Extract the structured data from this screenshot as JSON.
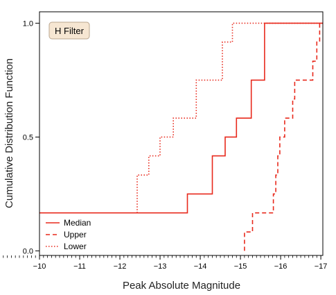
{
  "chart_data": {
    "type": "line",
    "step": true,
    "annotation": "H Filter",
    "xlabel": "Peak Absolute Magnitude",
    "ylabel": "Cumulative Distribution Function",
    "xlim": [
      -10,
      -17.05
    ],
    "ylim": [
      -0.02,
      1.05
    ],
    "x_inverted": true,
    "x_ticks": [
      -10,
      -11,
      -12,
      -13,
      -14,
      -15,
      -16,
      -17
    ],
    "x_tick_labels": [
      "−10",
      "−11",
      "−12",
      "−13",
      "−14",
      "−15",
      "−16",
      "−17"
    ],
    "y_ticks": [
      0.0,
      0.5,
      1.0
    ],
    "y_tick_labels": [
      "0.0",
      "0.5",
      "1.0"
    ],
    "legend_position": "lower-left",
    "series": [
      {
        "name": "Median",
        "linestyle": "solid",
        "color": "#e8291c",
        "x": [
          -10,
          -13.68,
          -13.68,
          -14.3,
          -14.3,
          -14.62,
          -14.62,
          -14.9,
          -14.9,
          -15.27,
          -15.27,
          -15.6,
          -15.6,
          -17.05
        ],
        "y": [
          0.167,
          0.167,
          0.25,
          0.25,
          0.417,
          0.417,
          0.5,
          0.5,
          0.583,
          0.583,
          0.75,
          0.75,
          1.0,
          1.0
        ]
      },
      {
        "name": "Upper",
        "linestyle": "dashed",
        "color": "#e8291c",
        "x": [
          -15.1,
          -15.1,
          -15.2,
          -15.2,
          -15.3,
          -15.3,
          -15.82,
          -15.82,
          -15.88,
          -15.88,
          -15.93,
          -15.93,
          -15.98,
          -15.98,
          -16.1,
          -16.1,
          -16.17,
          -16.17,
          -16.3,
          -16.3,
          -16.35,
          -16.35,
          -16.42,
          -16.42,
          -16.8,
          -16.8,
          -16.9,
          -16.9,
          -16.97,
          -16.97,
          -17.05,
          -17.05
        ],
        "y": [
          0.0,
          0.083,
          0.083,
          0.083,
          0.083,
          0.167,
          0.167,
          0.25,
          0.25,
          0.333,
          0.333,
          0.417,
          0.417,
          0.5,
          0.5,
          0.583,
          0.583,
          0.583,
          0.583,
          0.667,
          0.667,
          0.75,
          0.75,
          0.75,
          0.75,
          0.833,
          0.833,
          0.917,
          0.917,
          1.0,
          1.0,
          1.0
        ]
      },
      {
        "name": "Lower",
        "linestyle": "dotted",
        "color": "#e8291c",
        "x": [
          -12.43,
          -12.43,
          -12.72,
          -12.72,
          -13.0,
          -13.0,
          -13.33,
          -13.33,
          -13.9,
          -13.9,
          -14.55,
          -14.55,
          -14.8,
          -14.8,
          -17.05
        ],
        "y": [
          0.167,
          0.333,
          0.333,
          0.417,
          0.417,
          0.5,
          0.5,
          0.583,
          0.583,
          0.75,
          0.75,
          0.917,
          0.917,
          1.0,
          1.0
        ]
      }
    ]
  }
}
